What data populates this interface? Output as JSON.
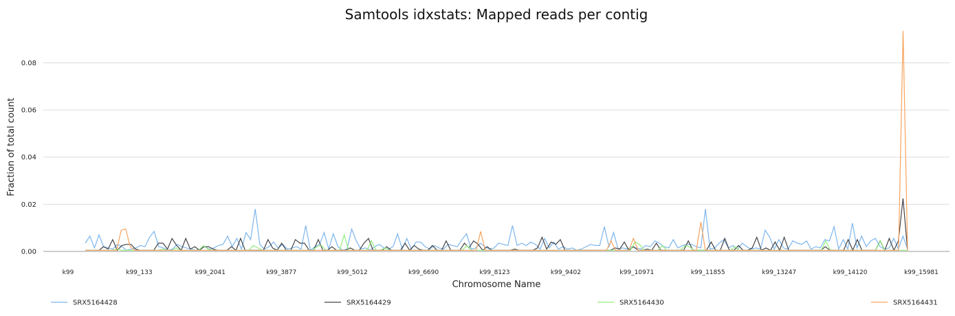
{
  "chart_data": {
    "type": "line",
    "title": "Samtools idxstats: Mapped reads per contig",
    "xlabel": "Chromosome Name",
    "ylabel": "Fraction of total count",
    "ylim": [
      0,
      0.095
    ],
    "yticks": [
      "0.00",
      "0.02",
      "0.04",
      "0.06",
      "0.08"
    ],
    "ytick_values": [
      0,
      0.02,
      0.04,
      0.06,
      0.08
    ],
    "grid": true,
    "legend_position": "bottom",
    "category_labels": [
      "k99",
      "k99_133",
      "k99_2041",
      "k99_3877",
      "k99_5012",
      "k99_6690",
      "k99_8123",
      "k99_9402",
      "k99_10971",
      "k99_11855",
      "k99_13247",
      "k99_14120",
      "k99_15981"
    ],
    "series": [
      {
        "name": "SRX5164428",
        "color": "#7cb5ec",
        "values": [
          0.0035,
          0.0065,
          0.0015,
          0.007,
          0.002,
          0.0015,
          0.001,
          0.003,
          0.002,
          0.0005,
          0.001,
          0.0015,
          0.0025,
          0.002,
          0.006,
          0.0085,
          0.002,
          0.0015,
          0.0005,
          0.001,
          0.003,
          0.002,
          0.0015,
          0.001,
          0.0005,
          0.001,
          0.002,
          0.001,
          0.0015,
          0.0025,
          0.003,
          0.0065,
          0.002,
          0.0055,
          0.001,
          0.008,
          0.005,
          0.018,
          0.003,
          0.001,
          0.002,
          0.004,
          0.0015,
          0.003,
          0.001,
          0.0015,
          0.002,
          0.001,
          0.011,
          0.0005,
          0.002,
          0.003,
          0.008,
          0.001,
          0.0075,
          0.002,
          0.0005,
          0.001,
          0.0095,
          0.0045,
          0.001,
          0.0015,
          0.0005,
          0.002,
          0.003,
          0.0015,
          0.001,
          0.002,
          0.0075,
          0.001,
          0.0055,
          0.001,
          0.004,
          0.004,
          0.002,
          0.001,
          0.0025,
          0.0015,
          0.001,
          0.003,
          0.0025,
          0.002,
          0.005,
          0.0075,
          0.001,
          0.0015,
          0.0035,
          0.002,
          0.001,
          0.0015,
          0.0035,
          0.003,
          0.0025,
          0.011,
          0.0025,
          0.0035,
          0.0025,
          0.004,
          0.003,
          0.001,
          0.0055,
          0.0015,
          0.004,
          0.001,
          0.002,
          0.001,
          0.0015,
          0.0005,
          0.001,
          0.002,
          0.003,
          0.0025,
          0.0025,
          0.0105,
          0.002,
          0.008,
          0.001,
          0.0015,
          0.001,
          0.002,
          0.0015,
          0.001,
          0.0025,
          0.002,
          0.0045,
          0.0035,
          0.002,
          0.0015,
          0.005,
          0.0015,
          0.0025,
          0.003,
          0.003,
          0.002,
          0.0015,
          0.018,
          0.001,
          0.0015,
          0.0035,
          0.005,
          0.0015,
          0.0025,
          0.001,
          0.0035,
          0.002,
          0.001,
          0.0015,
          0.001,
          0.009,
          0.006,
          0.001,
          0.005,
          0.0015,
          0.001,
          0.0045,
          0.0035,
          0.003,
          0.0045,
          0.001,
          0.002,
          0.0015,
          0.005,
          0.0045,
          0.0105,
          0.001,
          0.005,
          0.001,
          0.012,
          0.0015,
          0.0065,
          0.002,
          0.0045,
          0.0055,
          0.002,
          0.001,
          0.0015,
          0.0055,
          0.001,
          0.0065,
          0.001
        ]
      },
      {
        "name": "SRX5164429",
        "color": "#434348",
        "values": [
          0.0005,
          0.0005,
          0.0005,
          0.0005,
          0.002,
          0.001,
          0.005,
          0.0005,
          0.0025,
          0.003,
          0.003,
          0.001,
          0.0005,
          0.0005,
          0.0005,
          0.0005,
          0.0035,
          0.0035,
          0.001,
          0.0055,
          0.0025,
          0.0005,
          0.0055,
          0.001,
          0.002,
          0.0005,
          0.002,
          0.002,
          0.001,
          0.0005,
          0.0005,
          0.0005,
          0.002,
          0.0005,
          0.0055,
          0.0005,
          0.0005,
          0.0005,
          0.0005,
          0.0005,
          0.005,
          0.0015,
          0.0005,
          0.0035,
          0.0005,
          0.0005,
          0.005,
          0.0035,
          0.0035,
          0.0005,
          0.0005,
          0.005,
          0.0005,
          0.0005,
          0.002,
          0.0005,
          0.0005,
          0.0005,
          0.0015,
          0.0005,
          0.0005,
          0.0035,
          0.0055,
          0.0005,
          0.0005,
          0.0005,
          0.002,
          0.0005,
          0.0005,
          0.0005,
          0.0035,
          0.0005,
          0.0025,
          0.001,
          0.0005,
          0.0005,
          0.0025,
          0.0005,
          0.0005,
          0.0045,
          0.0005,
          0.0005,
          0.0005,
          0.0035,
          0.0015,
          0.0045,
          0.003,
          0.0005,
          0.002,
          0.0005,
          0.0005,
          0.0005,
          0.0005,
          0.0005,
          0.001,
          0.0005,
          0.0005,
          0.0005,
          0.0005,
          0.0015,
          0.006,
          0.001,
          0.004,
          0.003,
          0.005,
          0.0005,
          0.0005,
          0.0005,
          0.0005,
          0.0005,
          0.0005,
          0.0005,
          0.0005,
          0.0005,
          0.0005,
          0.0005,
          0.0015,
          0.001,
          0.004,
          0.0005,
          0.002,
          0.0005,
          0.0005,
          0.001,
          0.0005,
          0.0035,
          0.0005,
          0.0005,
          0.0005,
          0.0005,
          0.0005,
          0.0005,
          0.0045,
          0.0005,
          0.0005,
          0.0005,
          0.0005,
          0.004,
          0.0005,
          0.0005,
          0.0055,
          0.0005,
          0.0005,
          0.0025,
          0.0005,
          0.0005,
          0.0015,
          0.006,
          0.0005,
          0.0015,
          0.0005,
          0.004,
          0.0005,
          0.006,
          0.0005,
          0.0005,
          0.0005,
          0.0005,
          0.0005,
          0.0005,
          0.0005,
          0.0005,
          0.002,
          0.0005,
          0.0005,
          0.0005,
          0.0005,
          0.005,
          0.0005,
          0.005,
          0.0005,
          0.0005,
          0.0005,
          0.0005,
          0.0045,
          0.0005,
          0.0055,
          0.0005,
          0.0045,
          0.0225,
          0.0005
        ]
      },
      {
        "name": "SRX5164430",
        "color": "#90ed7d",
        "values": [
          0.0005,
          0.0005,
          0.0005,
          0.0005,
          0.0005,
          0.0005,
          0.0005,
          0.001,
          0.0005,
          0.0005,
          0.0005,
          0.0005,
          0.0005,
          0.0005,
          0.0005,
          0.0005,
          0.0005,
          0.001,
          0.0005,
          0.0005,
          0.0015,
          0.0005,
          0.0005,
          0.0005,
          0.0005,
          0.0005,
          0.0025,
          0.001,
          0.0005,
          0.0005,
          0.0005,
          0.0005,
          0.0005,
          0.0005,
          0.0005,
          0.0005,
          0.0005,
          0.0025,
          0.0015,
          0.0005,
          0.0005,
          0.0005,
          0.0005,
          0.0005,
          0.0005,
          0.0005,
          0.0005,
          0.0005,
          0.0005,
          0.0005,
          0.0005,
          0.002,
          0.0025,
          0.0005,
          0.0005,
          0.0005,
          0.0005,
          0.007,
          0.0005,
          0.0005,
          0.0005,
          0.0005,
          0.0005,
          0.0045,
          0.0005,
          0.0005,
          0.0015,
          0.0005,
          0.0005,
          0.0005,
          0.0005,
          0.0005,
          0.0005,
          0.0005,
          0.0005,
          0.0005,
          0.0005,
          0.0005,
          0.0005,
          0.0005,
          0.0005,
          0.0005,
          0.0005,
          0.0005,
          0.0025,
          0.0005,
          0.0005,
          0.0005,
          0.0005,
          0.0005,
          0.0005,
          0.0005,
          0.0005,
          0.0005,
          0.0005,
          0.0005,
          0.0005,
          0.0005,
          0.0005,
          0.0005,
          0.0005,
          0.0005,
          0.0005,
          0.0005,
          0.0005,
          0.0005,
          0.0005,
          0.0005,
          0.0005,
          0.0005,
          0.0005,
          0.0005,
          0.0005,
          0.0005,
          0.0005,
          0.0005,
          0.0005,
          0.0005,
          0.0005,
          0.0005,
          0.0005,
          0.004,
          0.003,
          0.0005,
          0.0005,
          0.0005,
          0.0005,
          0.0025,
          0.0005,
          0.0005,
          0.0005,
          0.0005,
          0.0025,
          0.002,
          0.0005,
          0.0005,
          0.0005,
          0.0005,
          0.0005,
          0.0005,
          0.0005,
          0.0005,
          0.0005,
          0.002,
          0.0005,
          0.0005,
          0.0005,
          0.0005,
          0.0005,
          0.0005,
          0.0005,
          0.0005,
          0.0005,
          0.0005,
          0.0005,
          0.0005,
          0.0005,
          0.0005,
          0.0005,
          0.0005,
          0.0005,
          0.0005,
          0.0005,
          0.0045,
          0.0005,
          0.0005,
          0.0005,
          0.0005,
          0.0005,
          0.0005,
          0.0005,
          0.0005,
          0.0005,
          0.0005,
          0.0005,
          0.0045,
          0.0005,
          0.0005,
          0.0005,
          0.0005,
          0.0005,
          0.0005
        ]
      },
      {
        "name": "SRX5164431",
        "color": "#f7a35c",
        "values": [
          0.0005,
          0.0005,
          0.0005,
          0.0005,
          0.0005,
          0.0005,
          0.0005,
          0.0005,
          0.009,
          0.0095,
          0.002,
          0.0005,
          0.0005,
          0.0005,
          0.0005,
          0.0005,
          0.0005,
          0.0005,
          0.0005,
          0.0005,
          0.0005,
          0.0005,
          0.0005,
          0.0005,
          0.0005,
          0.0005,
          0.0005,
          0.0005,
          0.0005,
          0.0005,
          0.0005,
          0.0005,
          0.0005,
          0.0005,
          0.0005,
          0.0005,
          0.0005,
          0.0005,
          0.0005,
          0.0005,
          0.0005,
          0.0005,
          0.0005,
          0.0005,
          0.0005,
          0.0005,
          0.0005,
          0.0005,
          0.0005,
          0.0005,
          0.0005,
          0.0005,
          0.0005,
          0.0005,
          0.0005,
          0.0005,
          0.0005,
          0.0005,
          0.0005,
          0.0005,
          0.0005,
          0.0005,
          0.0005,
          0.0005,
          0.0005,
          0.0005,
          0.0005,
          0.0005,
          0.0005,
          0.0005,
          0.0005,
          0.0005,
          0.0005,
          0.0005,
          0.0005,
          0.0005,
          0.0005,
          0.0005,
          0.0005,
          0.0005,
          0.0005,
          0.0005,
          0.0005,
          0.0005,
          0.0005,
          0.0005,
          0.0005,
          0.0005,
          0.0085,
          0.0005,
          0.0005,
          0.0005,
          0.0005,
          0.0005,
          0.0005,
          0.0005,
          0.0005,
          0.0005,
          0.0005,
          0.0005,
          0.0005,
          0.0005,
          0.0005,
          0.0005,
          0.0005,
          0.0005,
          0.0005,
          0.0005,
          0.0005,
          0.0005,
          0.0005,
          0.0005,
          0.0005,
          0.0005,
          0.0005,
          0.0005,
          0.0005,
          0.0045,
          0.0005,
          0.0005,
          0.0005,
          0.0005,
          0.0055,
          0.0005,
          0.0005,
          0.0005,
          0.0005,
          0.0005,
          0.0005,
          0.0005,
          0.0005,
          0.0005,
          0.0005,
          0.0005,
          0.0005,
          0.0005,
          0.0005,
          0.0125,
          0.0005,
          0.0005,
          0.0005,
          0.0005,
          0.0005,
          0.0005,
          0.0005,
          0.0005,
          0.0005,
          0.0005,
          0.0005,
          0.0005,
          0.0005,
          0.0005,
          0.0005,
          0.0005,
          0.0005,
          0.0005,
          0.0005,
          0.0005,
          0.0005,
          0.0005,
          0.0005,
          0.0005,
          0.0005,
          0.0005,
          0.0005,
          0.0005,
          0.0005,
          0.0005,
          0.0005,
          0.0005,
          0.0005,
          0.0005,
          0.0005,
          0.0005,
          0.0005,
          0.0005,
          0.0005,
          0.0005,
          0.0005,
          0.0005,
          0.0005,
          0.0005,
          0.0935,
          0.0005
        ]
      }
    ]
  }
}
